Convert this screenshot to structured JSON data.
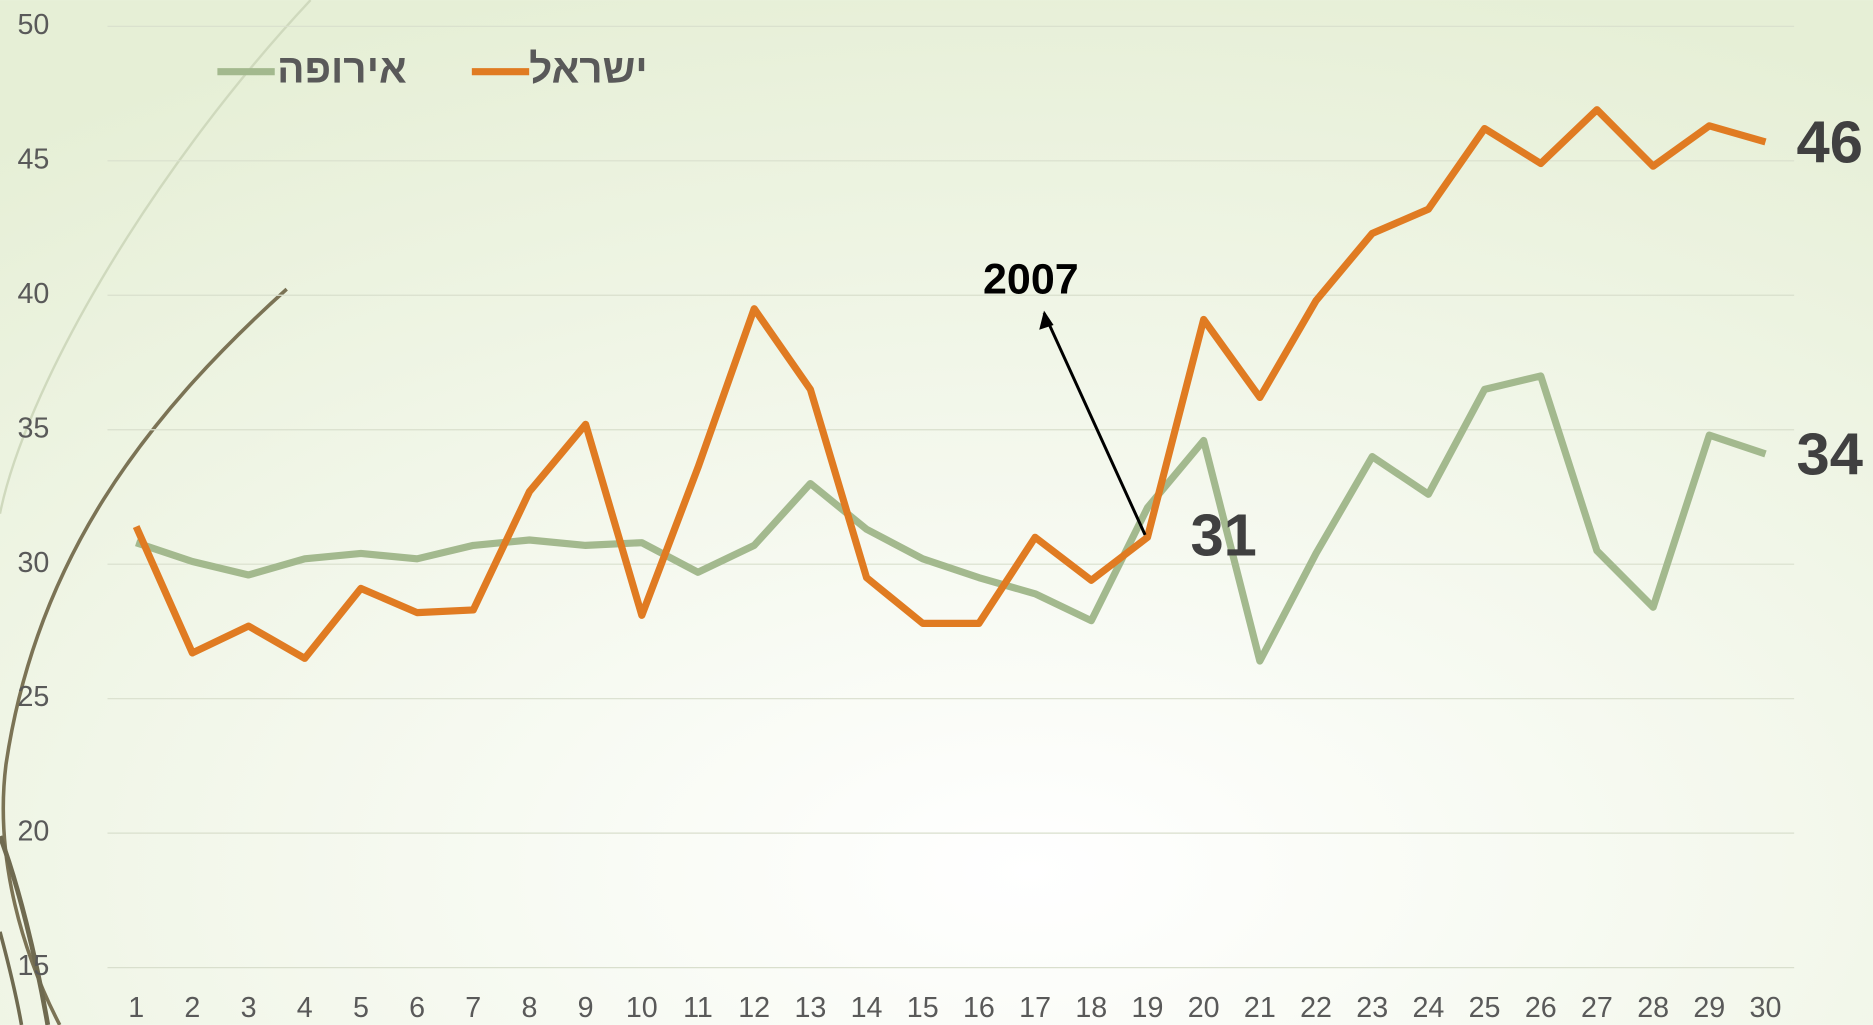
{
  "chart_data": {
    "type": "line",
    "categories": [
      "1",
      "2",
      "3",
      "4",
      "5",
      "6",
      "7",
      "8",
      "9",
      "10",
      "11",
      "12",
      "13",
      "14",
      "15",
      "16",
      "17",
      "18",
      "19",
      "20",
      "21",
      "22",
      "23",
      "24",
      "25",
      "26",
      "27",
      "28",
      "29",
      "30"
    ],
    "series": [
      {
        "name": "ישראל",
        "color": "#e07b22",
        "values": [
          31.4,
          26.7,
          27.7,
          26.5,
          29.1,
          28.2,
          28.3,
          32.7,
          35.2,
          28.1,
          33.6,
          39.5,
          36.5,
          29.5,
          27.8,
          27.8,
          31.0,
          29.4,
          31.0,
          39.1,
          36.2,
          39.8,
          42.3,
          43.2,
          46.2,
          44.9,
          46.9,
          44.8,
          46.3,
          45.7
        ]
      },
      {
        "name": "אירופה",
        "color": "#a3b98e",
        "values": [
          30.8,
          30.1,
          29.6,
          30.2,
          30.4,
          30.2,
          30.7,
          30.9,
          30.7,
          30.8,
          29.7,
          30.7,
          33.0,
          31.3,
          30.2,
          29.5,
          28.9,
          27.9,
          32.1,
          34.6,
          26.4,
          30.4,
          34.0,
          32.6,
          36.5,
          37.0,
          30.5,
          28.4,
          34.8,
          34.1
        ]
      }
    ],
    "ylim": [
      15,
      50
    ],
    "yticks": [
      15,
      20,
      25,
      30,
      35,
      40,
      45,
      50
    ],
    "grid": true,
    "annotations": [
      {
        "text": "46",
        "series": 0,
        "index": 29
      },
      {
        "text": "34",
        "series": 1,
        "index": 29
      },
      {
        "text": "31",
        "series": 0,
        "index": 18
      },
      {
        "text": "2007",
        "series": 0,
        "index": 18,
        "arrow": true
      }
    ]
  }
}
